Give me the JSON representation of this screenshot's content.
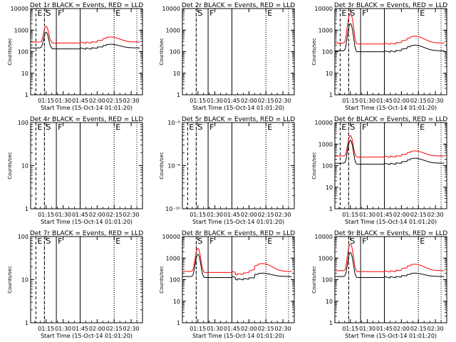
{
  "time_ticks": [
    "01:15",
    "01:30",
    "01:45",
    "02:00",
    "02:15",
    "02:30"
  ],
  "xlabel": "Start Time (15-Oct-14 01:01:20)",
  "ylabel": "Counts/sec",
  "marker_letters": {
    "E1": "E",
    "S": "S",
    "F": "F",
    "E2": "E"
  },
  "colors": {
    "events": "#000000",
    "lld": "#ff0000",
    "axes": "#000000"
  },
  "chart_data": [
    {
      "type": "line",
      "title": "Det 1r BLACK = Events, RED = LLD",
      "yscale": "log",
      "ylim": [
        1,
        10000
      ],
      "yticks": [
        "1",
        "10",
        "100",
        "1000",
        "10000"
      ],
      "markers": [
        "E1",
        "S",
        "F",
        "E2"
      ],
      "profile": "normal",
      "series": [
        {
          "name": "Events",
          "color": "#000000",
          "base": 150,
          "peak": 800,
          "hump": 220
        },
        {
          "name": "LLD",
          "color": "#ff0000",
          "base": 280,
          "peak": 1500,
          "hump": 480
        }
      ]
    },
    {
      "type": "line",
      "title": "Det 2r BLACK = Events, RED = LLD",
      "yscale": "log",
      "ylim": [
        1,
        10000
      ],
      "yticks": [
        "1",
        "10",
        "100",
        "1000",
        "10000"
      ],
      "markers": [
        "S",
        "F",
        "E2"
      ],
      "profile": "none",
      "series": []
    },
    {
      "type": "line",
      "title": "Det 3r BLACK = Events, RED = LLD",
      "yscale": "log",
      "ylim": [
        1,
        10000
      ],
      "yticks": [
        "1",
        "10",
        "100",
        "1000",
        "10000"
      ],
      "markers": [
        "E1",
        "S",
        "F",
        "E2"
      ],
      "profile": "normal",
      "series": [
        {
          "name": "Events",
          "color": "#000000",
          "base": 110,
          "peak": 2000,
          "hump": 200
        },
        {
          "name": "LLD",
          "color": "#ff0000",
          "base": 250,
          "peak": 6000,
          "hump": 520
        }
      ]
    },
    {
      "type": "line",
      "title": "Det 4r BLACK = Events, RED = LLD",
      "yscale": "log",
      "ylim": [
        1,
        100
      ],
      "yticks": [
        "1",
        "10",
        "100"
      ],
      "markers": [
        "E1",
        "S",
        "F",
        "E2"
      ],
      "profile": "none",
      "series": []
    },
    {
      "type": "line",
      "title": "Det 5r BLACK = Events, RED = LLD",
      "yscale": "log",
      "ylim": [
        1e-10,
        1e-08
      ],
      "yticks": [
        "10⁻¹⁰",
        "10⁻⁹",
        "10⁻⁸"
      ],
      "markers": [
        "E1",
        "S",
        "F",
        "E2"
      ],
      "profile": "none",
      "series": []
    },
    {
      "type": "line",
      "title": "Det 6r BLACK = Events, RED = LLD",
      "yscale": "log",
      "ylim": [
        1,
        10000
      ],
      "yticks": [
        "1",
        "10",
        "100",
        "1000",
        "10000"
      ],
      "markers": [
        "E1",
        "S",
        "F",
        "E2"
      ],
      "profile": "normal",
      "series": [
        {
          "name": "Events",
          "color": "#000000",
          "base": 130,
          "peak": 1500,
          "hump": 220
        },
        {
          "name": "LLD",
          "color": "#ff0000",
          "base": 280,
          "peak": 2500,
          "hump": 480
        }
      ]
    },
    {
      "type": "line",
      "title": "Det 7r BLACK = Events, RED = LLD",
      "yscale": "log",
      "ylim": [
        1,
        100
      ],
      "yticks": [
        "1",
        "10",
        "100"
      ],
      "markers": [
        "E1",
        "S",
        "F",
        "E2"
      ],
      "profile": "none",
      "series": []
    },
    {
      "type": "line",
      "title": "Det 8r BLACK = Events, RED = LLD",
      "yscale": "log",
      "ylim": [
        1,
        10000
      ],
      "yticks": [
        "1",
        "10",
        "100",
        "1000",
        "10000"
      ],
      "markers": [
        "S",
        "F",
        "E2"
      ],
      "profile": "alt",
      "series": [
        {
          "name": "Events",
          "color": "#000000",
          "base": 140,
          "peak": 1500,
          "hump": 200
        },
        {
          "name": "LLD",
          "color": "#ff0000",
          "base": 240,
          "peak": 2800,
          "hump": 560
        }
      ]
    },
    {
      "type": "line",
      "title": "Det 9r BLACK = Events, RED = LLD",
      "yscale": "log",
      "ylim": [
        1,
        10000
      ],
      "yticks": [
        "1",
        "10",
        "100",
        "1000",
        "10000"
      ],
      "markers": [
        "S",
        "F",
        "E2"
      ],
      "profile": "normal",
      "series": [
        {
          "name": "Events",
          "color": "#000000",
          "base": 140,
          "peak": 1800,
          "hump": 200
        },
        {
          "name": "LLD",
          "color": "#ff0000",
          "base": 260,
          "peak": 4500,
          "hump": 520
        }
      ]
    }
  ]
}
